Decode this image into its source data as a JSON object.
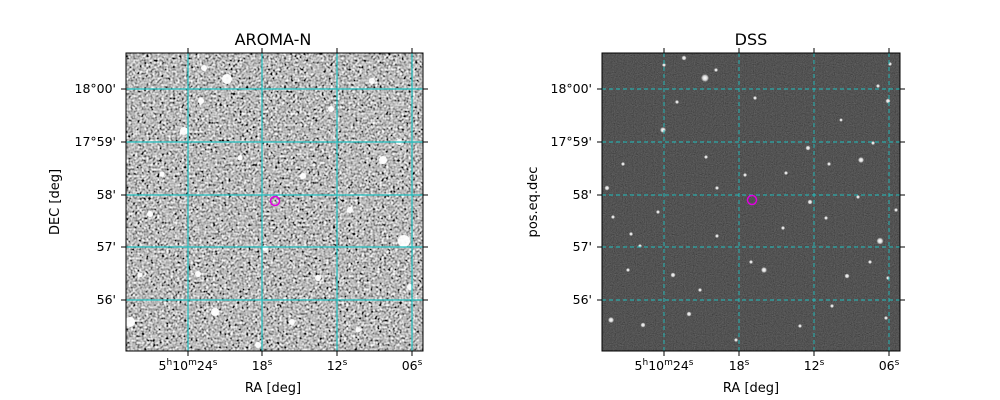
{
  "panels": [
    {
      "title": "AROMA-N",
      "xlabel": "RA [deg]",
      "ylabel": "DEC [deg]",
      "image": "noisy-grayscale-sky",
      "ra_ticks": [
        {
          "h": "5",
          "m": "10",
          "s": "24"
        },
        {
          "s": "18"
        },
        {
          "s": "12"
        },
        {
          "s": "06"
        }
      ],
      "dec_ticks": [
        "18°00'",
        "17°59'",
        "58'",
        "57'",
        "56'"
      ]
    },
    {
      "title": "DSS",
      "xlabel": "RA [deg]",
      "ylabel": "pos.eq.dec",
      "image": "dark-sky-with-stars",
      "ra_ticks": [
        {
          "h": "5",
          "m": "10",
          "s": "24"
        },
        {
          "s": "18"
        },
        {
          "s": "12"
        },
        {
          "s": "06"
        }
      ],
      "dec_ticks": [
        "18°00'",
        "17°59'",
        "58'",
        "57'",
        "56'"
      ]
    }
  ],
  "colors": {
    "grid": "#20c0c0",
    "marker": "#e000e0",
    "frame": "#000000"
  },
  "marker": {
    "shape": "circle",
    "ra_s": 17.0,
    "dec_min": 57.9
  }
}
